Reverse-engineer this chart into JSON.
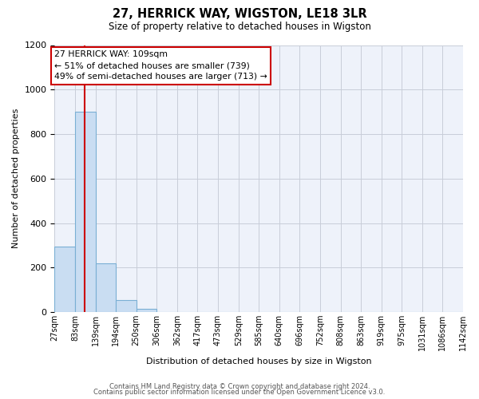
{
  "title": "27, HERRICK WAY, WIGSTON, LE18 3LR",
  "subtitle": "Size of property relative to detached houses in Wigston",
  "xlabel": "Distribution of detached houses by size in Wigston",
  "ylabel": "Number of detached properties",
  "bin_edges": [
    27,
    83,
    139,
    194,
    250,
    306,
    362,
    417,
    473,
    529,
    585,
    640,
    696,
    752,
    808,
    863,
    919,
    975,
    1031,
    1086,
    1142
  ],
  "bin_labels": [
    "27sqm",
    "83sqm",
    "139sqm",
    "194sqm",
    "250sqm",
    "306sqm",
    "362sqm",
    "417sqm",
    "473sqm",
    "529sqm",
    "585sqm",
    "640sqm",
    "696sqm",
    "752sqm",
    "808sqm",
    "863sqm",
    "919sqm",
    "975sqm",
    "1031sqm",
    "1086sqm",
    "1142sqm"
  ],
  "bar_heights": [
    295,
    900,
    220,
    55,
    15,
    0,
    0,
    0,
    0,
    0,
    0,
    0,
    0,
    0,
    0,
    0,
    0,
    0,
    0,
    0
  ],
  "bar_color": "#c9ddf2",
  "bar_edge_color": "#7aafd4",
  "ylim": [
    0,
    1200
  ],
  "yticks": [
    0,
    200,
    400,
    600,
    800,
    1000,
    1200
  ],
  "property_line_x": 109,
  "property_line_color": "#cc0000",
  "annotation_box_text": "27 HERRICK WAY: 109sqm\n← 51% of detached houses are smaller (739)\n49% of semi-detached houses are larger (713) →",
  "footer_line1": "Contains HM Land Registry data © Crown copyright and database right 2024.",
  "footer_line2": "Contains public sector information licensed under the Open Government Licence v3.0.",
  "background_color": "#ffffff",
  "plot_background_color": "#eef2fa",
  "grid_color": "#c8cdd8"
}
